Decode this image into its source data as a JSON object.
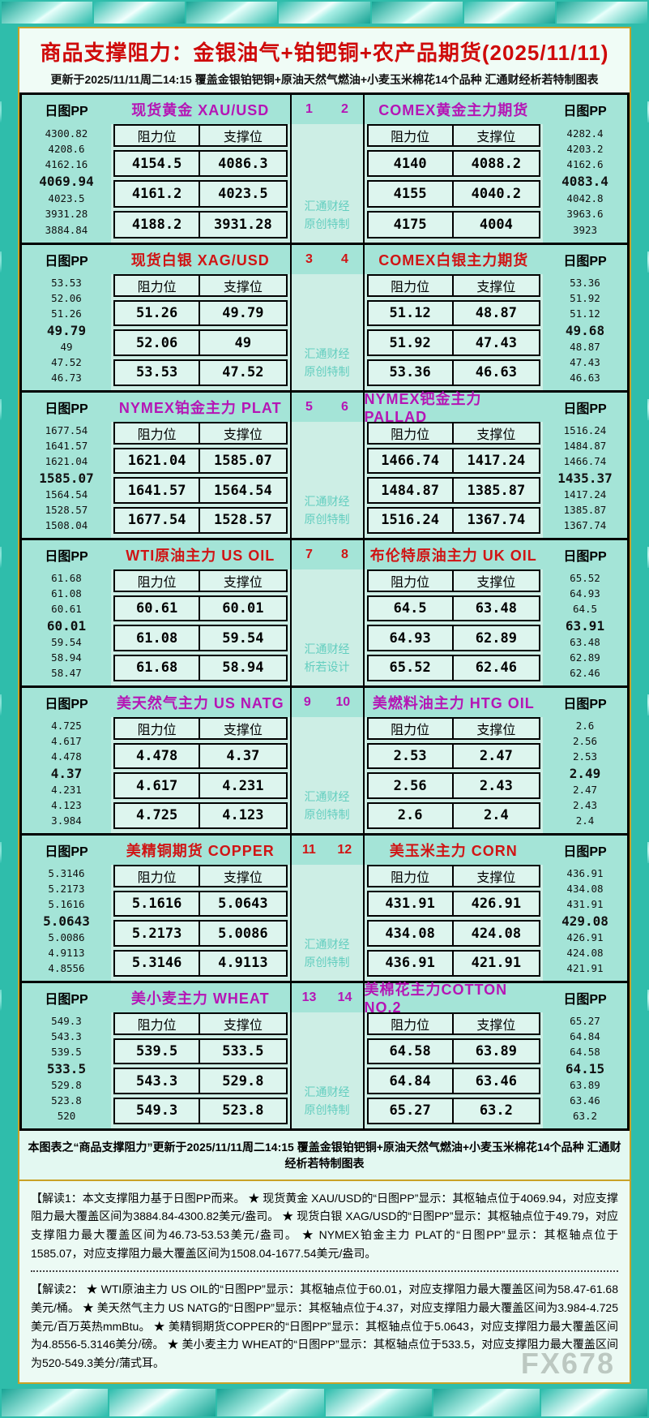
{
  "title": "商品支撑阻力：金银油气+铂钯铜+农产品期货(2025/11/11)",
  "subtitle": "更新于2025/11/11周二14:15 覆盖金银铂钯铜+原油天然气燃油+小麦玉米棉花14个品种 汇通财经析若特制图表",
  "labels": {
    "pp": "日图PP",
    "resistance": "阻力位",
    "support": "支撑位"
  },
  "colors": {
    "magenta_accent": "#b515b5",
    "red_accent": "#d01414",
    "title_red": "#cf0a0a",
    "gold_border": "#c9a227",
    "teal_frame": "#2fbdab"
  },
  "chart_data": {
    "type": "table",
    "title": "商品支撑阻力：金银油气+铂钯铜+农产品期货(2025/11/11)",
    "columns": [
      "阻力位",
      "支撑位"
    ],
    "rows": [
      {
        "accent": "#b515b5",
        "nums": [
          "1",
          "2"
        ],
        "watermark": [
          "汇通财经",
          "原创特制"
        ],
        "left": {
          "title": "现货黄金 XAU/USD",
          "ladder": [
            "4300.82",
            "4208.6",
            "4162.16",
            "4069.94",
            "4023.5",
            "3931.28",
            "3884.84"
          ],
          "pivot": "4069.94",
          "table": [
            [
              "4154.5",
              "4086.3"
            ],
            [
              "4161.2",
              "4023.5"
            ],
            [
              "4188.2",
              "3931.28"
            ]
          ]
        },
        "right": {
          "title": "COMEX黄金主力期货",
          "ladder": [
            "4282.4",
            "4203.2",
            "4162.6",
            "4083.4",
            "4042.8",
            "3963.6",
            "3923"
          ],
          "pivot": "4083.4",
          "table": [
            [
              "4140",
              "4088.2"
            ],
            [
              "4155",
              "4040.2"
            ],
            [
              "4175",
              "4004"
            ]
          ]
        }
      },
      {
        "accent": "#d01414",
        "nums": [
          "3",
          "4"
        ],
        "watermark": [
          "汇通财经",
          "原创特制"
        ],
        "left": {
          "title": "现货白银 XAG/USD",
          "ladder": [
            "53.53",
            "52.06",
            "51.26",
            "49.79",
            "49",
            "47.52",
            "46.73"
          ],
          "pivot": "49.79",
          "table": [
            [
              "51.26",
              "49.79"
            ],
            [
              "52.06",
              "49"
            ],
            [
              "53.53",
              "47.52"
            ]
          ]
        },
        "right": {
          "title": "COMEX白银主力期货",
          "ladder": [
            "53.36",
            "51.92",
            "51.12",
            "49.68",
            "48.87",
            "47.43",
            "46.63"
          ],
          "pivot": "49.68",
          "table": [
            [
              "51.12",
              "48.87"
            ],
            [
              "51.92",
              "47.43"
            ],
            [
              "53.36",
              "46.63"
            ]
          ]
        }
      },
      {
        "accent": "#b515b5",
        "nums": [
          "5",
          "6"
        ],
        "watermark": [
          "汇通财经",
          "原创特制"
        ],
        "left": {
          "title": "NYMEX铂金主力 PLAT",
          "ladder": [
            "1677.54",
            "1641.57",
            "1621.04",
            "1585.07",
            "1564.54",
            "1528.57",
            "1508.04"
          ],
          "pivot": "1585.07",
          "table": [
            [
              "1621.04",
              "1585.07"
            ],
            [
              "1641.57",
              "1564.54"
            ],
            [
              "1677.54",
              "1528.57"
            ]
          ]
        },
        "right": {
          "title": "NYMEX钯金主力 PALLAD",
          "ladder": [
            "1516.24",
            "1484.87",
            "1466.74",
            "1435.37",
            "1417.24",
            "1385.87",
            "1367.74"
          ],
          "pivot": "1435.37",
          "table": [
            [
              "1466.74",
              "1417.24"
            ],
            [
              "1484.87",
              "1385.87"
            ],
            [
              "1516.24",
              "1367.74"
            ]
          ]
        }
      },
      {
        "accent": "#d01414",
        "nums": [
          "7",
          "8"
        ],
        "watermark": [
          "汇通财经",
          "析若设计"
        ],
        "left": {
          "title": "WTI原油主力 US OIL",
          "ladder": [
            "61.68",
            "61.08",
            "60.61",
            "60.01",
            "59.54",
            "58.94",
            "58.47"
          ],
          "pivot": "60.01",
          "table": [
            [
              "60.61",
              "60.01"
            ],
            [
              "61.08",
              "59.54"
            ],
            [
              "61.68",
              "58.94"
            ]
          ]
        },
        "right": {
          "title": "布伦特原油主力 UK OIL",
          "ladder": [
            "65.52",
            "64.93",
            "64.5",
            "63.91",
            "63.48",
            "62.89",
            "62.46"
          ],
          "pivot": "63.91",
          "table": [
            [
              "64.5",
              "63.48"
            ],
            [
              "64.93",
              "62.89"
            ],
            [
              "65.52",
              "62.46"
            ]
          ]
        }
      },
      {
        "accent": "#b515b5",
        "nums": [
          "9",
          "10"
        ],
        "watermark": [
          "汇通财经",
          "原创特制"
        ],
        "left": {
          "title": "美天然气主力 US NATG",
          "ladder": [
            "4.725",
            "4.617",
            "4.478",
            "4.37",
            "4.231",
            "4.123",
            "3.984"
          ],
          "pivot": "4.37",
          "table": [
            [
              "4.478",
              "4.37"
            ],
            [
              "4.617",
              "4.231"
            ],
            [
              "4.725",
              "4.123"
            ]
          ]
        },
        "right": {
          "title": "美燃料油主力 HTG OIL",
          "ladder": [
            "2.6",
            "2.56",
            "2.53",
            "2.49",
            "2.47",
            "2.43",
            "2.4"
          ],
          "pivot": "2.49",
          "table": [
            [
              "2.53",
              "2.47"
            ],
            [
              "2.56",
              "2.43"
            ],
            [
              "2.6",
              "2.4"
            ]
          ]
        }
      },
      {
        "accent": "#d01414",
        "nums": [
          "11",
          "12"
        ],
        "watermark": [
          "汇通财经",
          "原创特制"
        ],
        "left": {
          "title": "美精铜期货 COPPER",
          "ladder": [
            "5.3146",
            "5.2173",
            "5.1616",
            "5.0643",
            "5.0086",
            "4.9113",
            "4.8556"
          ],
          "pivot": "5.0643",
          "table": [
            [
              "5.1616",
              "5.0643"
            ],
            [
              "5.2173",
              "5.0086"
            ],
            [
              "5.3146",
              "4.9113"
            ]
          ]
        },
        "right": {
          "title": "美玉米主力 CORN",
          "ladder": [
            "436.91",
            "434.08",
            "431.91",
            "429.08",
            "426.91",
            "424.08",
            "421.91"
          ],
          "pivot": "429.08",
          "table": [
            [
              "431.91",
              "426.91"
            ],
            [
              "434.08",
              "424.08"
            ],
            [
              "436.91",
              "421.91"
            ]
          ]
        }
      },
      {
        "accent": "#b515b5",
        "nums": [
          "13",
          "14"
        ],
        "watermark": [
          "汇通财经",
          "原创特制"
        ],
        "left": {
          "title": "美小麦主力 WHEAT",
          "ladder": [
            "549.3",
            "543.3",
            "539.5",
            "533.5",
            "529.8",
            "523.8",
            "520"
          ],
          "pivot": "533.5",
          "table": [
            [
              "539.5",
              "533.5"
            ],
            [
              "543.3",
              "529.8"
            ],
            [
              "549.3",
              "523.8"
            ]
          ]
        },
        "right": {
          "title": "美棉花主力COTTON NO.2",
          "ladder": [
            "65.27",
            "64.84",
            "64.58",
            "64.15",
            "63.89",
            "63.46",
            "63.2"
          ],
          "pivot": "64.15",
          "table": [
            [
              "64.58",
              "63.89"
            ],
            [
              "64.84",
              "63.46"
            ],
            [
              "65.27",
              "63.2"
            ]
          ]
        }
      }
    ]
  },
  "footer": "本图表之“商品支撑阻力”更新于2025/11/11周二14:15 覆盖金银铂钯铜+原油天然气燃油+小麦玉米棉花14个品种 汇通财经析若特制图表",
  "notes": {
    "note1": "【解读1：本文支撑阻力基于日图PP而来。 ★ 现货黄金 XAU/USD的“日图PP”显示：其枢轴点位于4069.94，对应支撑阻力最大覆盖区间为3884.84-4300.82美元/盎司。 ★ 现货白银 XAG/USD的“日图PP”显示：其枢轴点位于49.79，对应支撑阻力最大覆盖区间为46.73-53.53美元/盎司。 ★ NYMEX铂金主力 PLAT的“日图PP”显示：其枢轴点位于1585.07，对应支撑阻力最大覆盖区间为1508.04-1677.54美元/盎司。",
    "note2": "【解读2： ★ WTI原油主力 US OIL的“日图PP”显示：其枢轴点位于60.01，对应支撑阻力最大覆盖区间为58.47-61.68美元/桶。 ★ 美天然气主力 US NATG的“日图PP”显示：其枢轴点位于4.37，对应支撑阻力最大覆盖区间为3.984-4.725美元/百万英热mmBtu。 ★ 美精铜期货COPPER的“日图PP”显示：其枢轴点位于5.0643，对应支撑阻力最大覆盖区间为4.8556-5.3146美分/磅。 ★ 美小麦主力 WHEAT的“日图PP”显示：其枢轴点位于533.5，对应支撑阻力最大覆盖区间为520-549.3美分/蒲式耳。"
  },
  "brand_watermark": "FX678"
}
